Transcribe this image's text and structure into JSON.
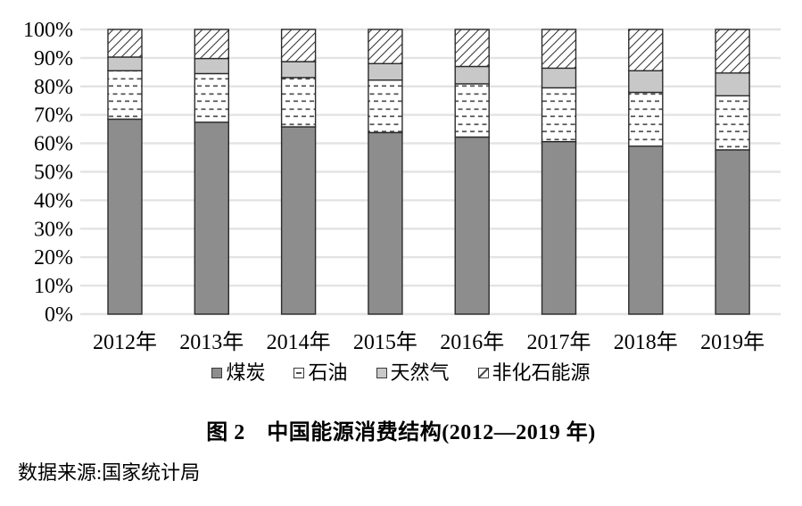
{
  "chart_data": {
    "type": "bar",
    "stacked": true,
    "title": "图 2　中国能源消费结构(2012—2019 年)",
    "source": "数据来源:国家统计局",
    "categories": [
      "2012年",
      "2013年",
      "2014年",
      "2015年",
      "2016年",
      "2017年",
      "2018年",
      "2019年"
    ],
    "series": [
      {
        "name": "煤炭",
        "key": "coal",
        "style": "solid-dark-gray",
        "color": "#8d8d8d",
        "values": [
          68.5,
          67.4,
          65.8,
          63.8,
          62.2,
          60.6,
          59.0,
          57.7
        ]
      },
      {
        "name": "石油",
        "key": "oil",
        "style": "white-dash-pattern",
        "color": "#ffffff",
        "values": [
          17.0,
          17.1,
          17.3,
          18.4,
          18.7,
          18.9,
          18.9,
          19.0
        ]
      },
      {
        "name": "天然气",
        "key": "natural-gas",
        "style": "solid-light-gray",
        "color": "#c8c8c8",
        "values": [
          4.8,
          5.3,
          5.6,
          5.8,
          6.1,
          6.9,
          7.6,
          8.0
        ]
      },
      {
        "name": "非化石能源",
        "key": "non-fossil",
        "style": "white-diagonal-hatch",
        "color": "#ffffff",
        "values": [
          9.7,
          10.2,
          11.3,
          12.0,
          13.0,
          13.6,
          14.5,
          15.3
        ]
      }
    ],
    "yticks": [
      "0%",
      "10%",
      "20%",
      "30%",
      "40%",
      "50%",
      "60%",
      "70%",
      "80%",
      "90%",
      "100%"
    ],
    "ylim": [
      0,
      100
    ],
    "unit": "percent",
    "grid": "horizontal",
    "legend_position": "bottom"
  },
  "colors": {
    "coal": "#8d8d8d",
    "natural_gas": "#c8c8c8",
    "pattern_ink": "#4d4d4d",
    "bar_border": "#2b2b2b",
    "gridline": "#e3e3e3",
    "text": "#000000",
    "background": "#ffffff"
  }
}
